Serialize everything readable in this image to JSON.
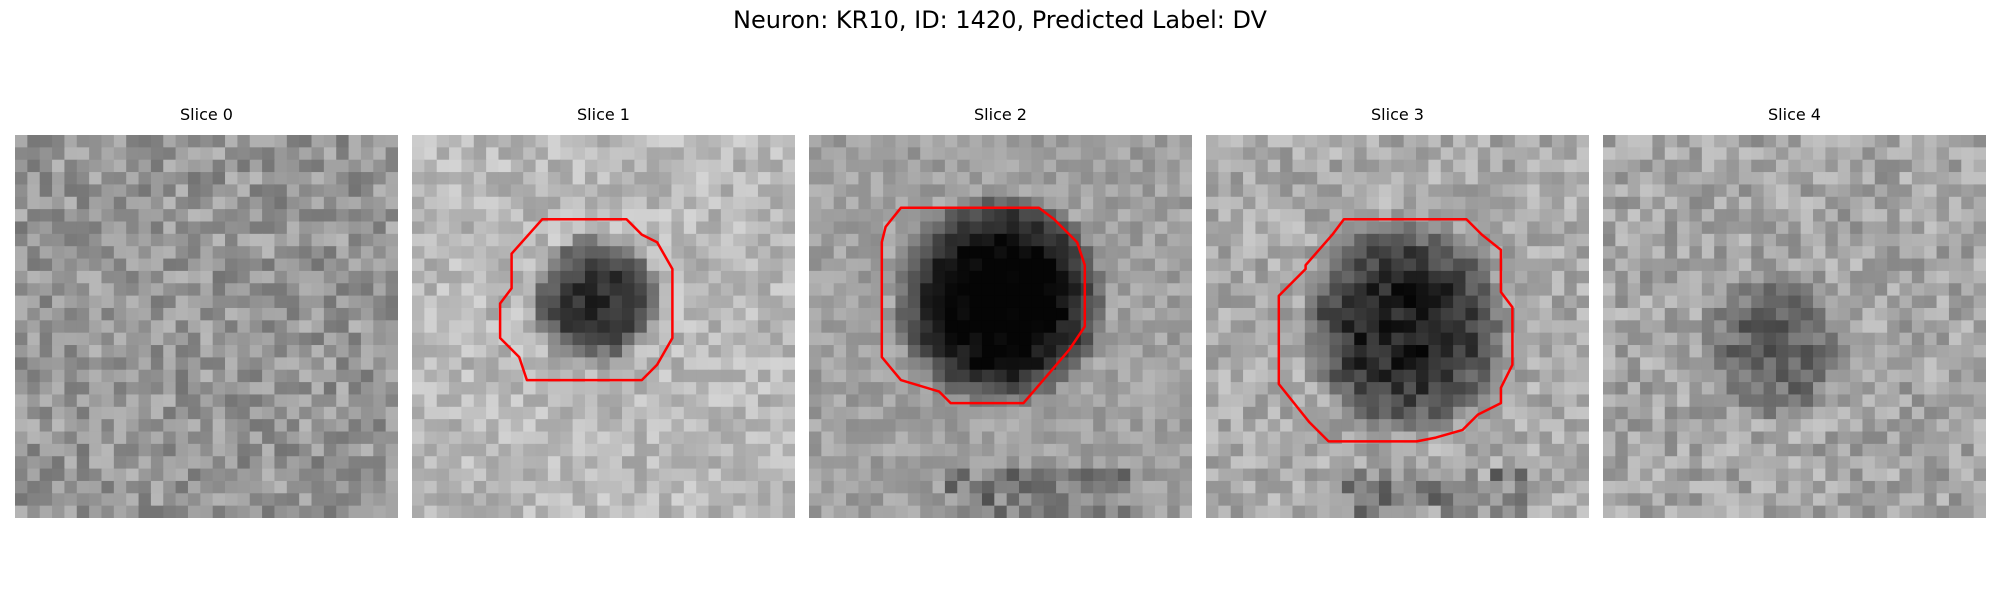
{
  "figure": {
    "title": "Neuron: KR10, ID: 1420, Predicted Label: DV",
    "contour_color": "#ff0000"
  },
  "panels": [
    {
      "title": "Slice 0",
      "has_contour": false
    },
    {
      "title": "Slice 1",
      "has_contour": true
    },
    {
      "title": "Slice 2",
      "has_contour": true
    },
    {
      "title": "Slice 3",
      "has_contour": true
    },
    {
      "title": "Slice 4",
      "has_contour": false
    }
  ]
}
